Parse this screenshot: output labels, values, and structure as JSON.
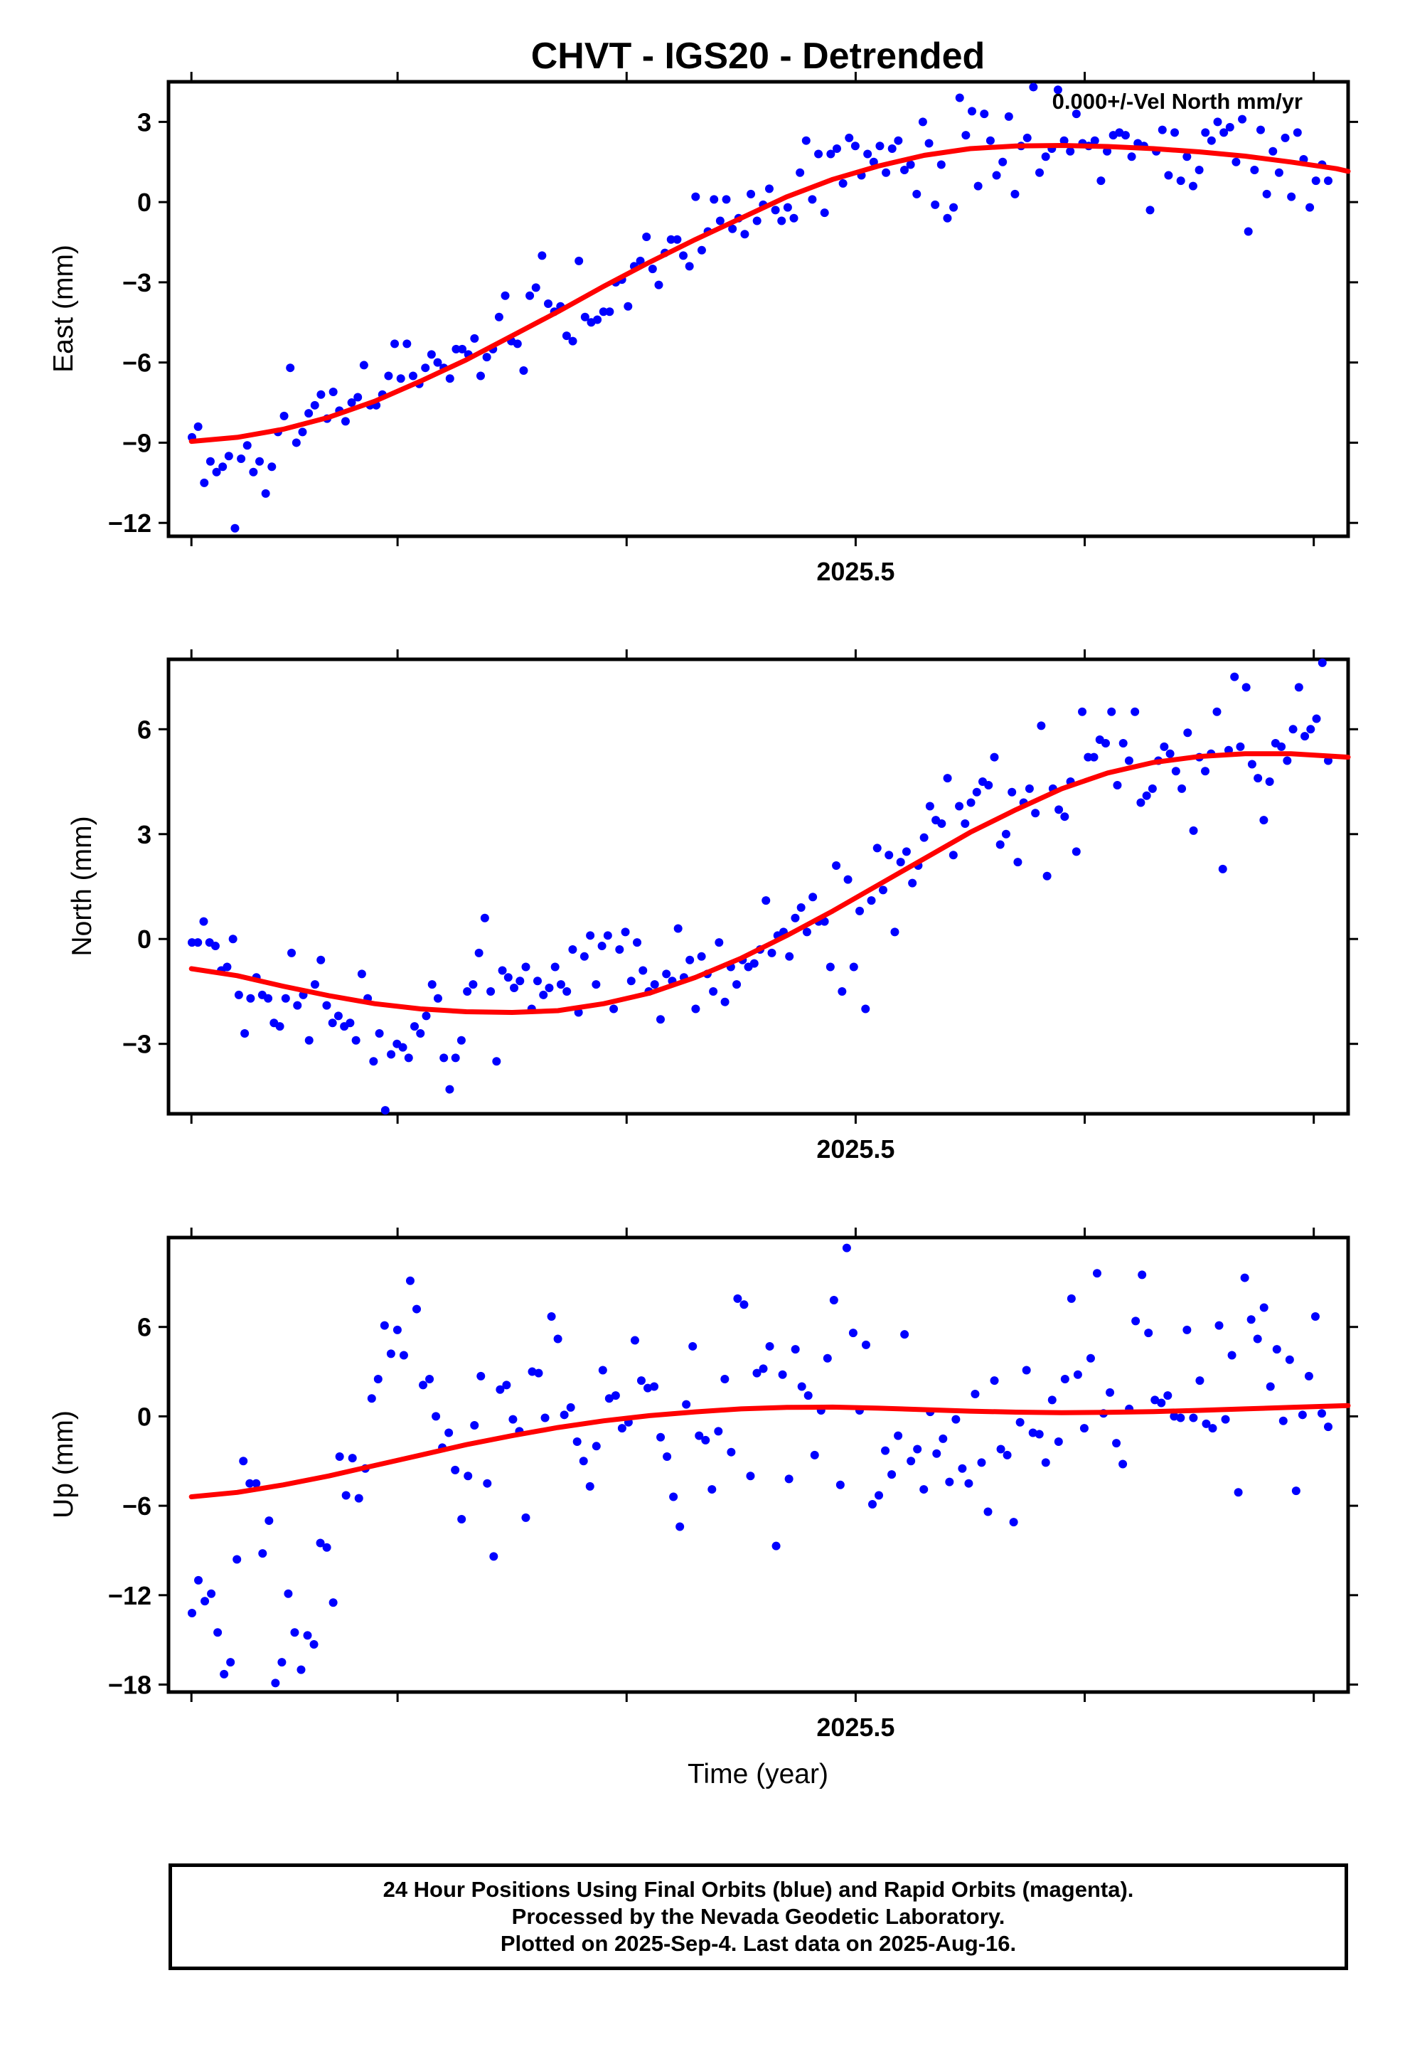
{
  "title": "CHVT - IGS20 - Detrended",
  "annotation": "0.000+/-Vel North mm/yr",
  "xlabel": "Time (year)",
  "footer": {
    "line1": "24 Hour Positions Using Final Orbits (blue) and Rapid Orbits (magenta).",
    "line2": "Processed by the Nevada Geodetic Laboratory.",
    "line3": "Plotted on 2025-Sep-4. Last data on 2025-Aug-16."
  },
  "colors": {
    "points": "#0000ff",
    "fit": "#ff0000",
    "axes": "#000000"
  },
  "chart_data": [
    {
      "type": "scatter",
      "ylabel": "East (mm)",
      "xlim": [
        2024.9,
        2025.93
      ],
      "ylim": [
        -12.5,
        4.5
      ],
      "yticks": [
        3,
        0,
        -3,
        -6,
        -9,
        -12
      ],
      "ytick_labels": [
        "3",
        "0",
        "−3",
        "−6",
        "−9",
        "−12"
      ],
      "xticks": [
        2024.92,
        2025.1,
        2025.3,
        2025.5,
        2025.7,
        2025.9
      ],
      "xtick_labels": [
        "",
        "",
        "",
        "2025.5",
        "",
        ""
      ],
      "series": [
        {
          "values": [
            -8.8,
            -8.4,
            -10.5,
            -9.7,
            -10.1,
            -9.9,
            -9.5,
            -12.2,
            -9.6,
            -9.1,
            -10.1,
            -9.7,
            -10.9,
            -9.9,
            -8.6,
            -8.0,
            -6.2,
            -9.0,
            -8.6,
            -7.9,
            -7.6,
            -7.2,
            -8.1,
            -7.1,
            -7.8,
            -8.2,
            -7.5,
            -7.3,
            -6.1,
            -7.6,
            -7.6,
            -7.2,
            -6.5,
            -5.3,
            -6.6,
            -5.3,
            -6.5,
            -6.8,
            -6.2,
            -5.7,
            -6.0,
            -6.2,
            -6.6,
            -5.5,
            -5.5,
            -5.7,
            -5.1,
            -6.5,
            -5.8,
            -5.5,
            -4.3,
            -3.5,
            -5.2,
            -5.3,
            -6.3,
            -3.5,
            -3.2,
            -2.0,
            -3.8,
            -4.1,
            -3.9,
            -5.0,
            -5.2,
            -2.2,
            -4.3,
            -4.5,
            -4.4,
            -4.1,
            -4.1,
            -3.0,
            -2.9,
            -3.9,
            -2.4,
            -2.2,
            -1.3,
            -2.5,
            -3.1,
            -1.9,
            -1.4,
            -1.4,
            -2.0,
            -2.4,
            0.2,
            -1.8,
            -1.1,
            0.1,
            -0.7,
            0.1,
            -1.0,
            -0.6,
            -1.2,
            0.3,
            -0.7,
            -0.1,
            0.5,
            -0.3,
            -0.7,
            -0.2,
            -0.6,
            1.1,
            2.3,
            0.1,
            1.8,
            -0.4,
            1.8,
            2.0,
            0.7,
            2.4,
            2.1,
            1.0,
            1.8,
            1.5,
            2.1,
            1.1,
            2.0,
            2.3,
            1.2,
            1.4,
            0.3,
            3.0,
            2.2,
            -0.1,
            1.4,
            -0.6,
            -0.2,
            3.9,
            2.5,
            3.4,
            0.6,
            3.3,
            2.3,
            1.0,
            1.5,
            3.2,
            0.3,
            2.1,
            2.4,
            4.3,
            1.1,
            1.7,
            2.0,
            4.2,
            2.3,
            1.9,
            3.3,
            2.2,
            2.1,
            2.3,
            0.8,
            1.9,
            2.5,
            2.6,
            2.5,
            1.7,
            2.2,
            2.1,
            -0.3,
            1.9,
            2.7,
            1.0,
            2.6,
            0.8,
            1.7,
            0.6,
            1.2,
            2.6,
            2.3,
            3.0,
            2.6,
            2.8,
            1.5,
            3.1,
            -1.1,
            1.2,
            2.7,
            0.3,
            1.9,
            1.1,
            2.4,
            0.2,
            2.6,
            1.6,
            -0.2,
            0.8,
            1.4,
            0.8
          ]
        }
      ],
      "fit": [
        {
          "x": 2024.92,
          "y": -8.95
        },
        {
          "x": 2024.96,
          "y": -8.8
        },
        {
          "x": 2025.0,
          "y": -8.5
        },
        {
          "x": 2025.04,
          "y": -8.05
        },
        {
          "x": 2025.08,
          "y": -7.45
        },
        {
          "x": 2025.12,
          "y": -6.7
        },
        {
          "x": 2025.16,
          "y": -5.9
        },
        {
          "x": 2025.2,
          "y": -5.0
        },
        {
          "x": 2025.24,
          "y": -4.1
        },
        {
          "x": 2025.28,
          "y": -3.15
        },
        {
          "x": 2025.32,
          "y": -2.25
        },
        {
          "x": 2025.36,
          "y": -1.4
        },
        {
          "x": 2025.4,
          "y": -0.6
        },
        {
          "x": 2025.44,
          "y": 0.2
        },
        {
          "x": 2025.48,
          "y": 0.85
        },
        {
          "x": 2025.52,
          "y": 1.35
        },
        {
          "x": 2025.56,
          "y": 1.75
        },
        {
          "x": 2025.6,
          "y": 2.0
        },
        {
          "x": 2025.64,
          "y": 2.1
        },
        {
          "x": 2025.68,
          "y": 2.12
        },
        {
          "x": 2025.72,
          "y": 2.08
        },
        {
          "x": 2025.76,
          "y": 2.0
        },
        {
          "x": 2025.8,
          "y": 1.88
        },
        {
          "x": 2025.84,
          "y": 1.72
        },
        {
          "x": 2025.88,
          "y": 1.5
        },
        {
          "x": 2025.92,
          "y": 1.25
        },
        {
          "x": 2025.93,
          "y": 1.15
        }
      ]
    },
    {
      "type": "scatter",
      "ylabel": "North (mm)",
      "xlim": [
        2024.9,
        2025.93
      ],
      "ylim": [
        -5,
        8
      ],
      "yticks": [
        6,
        3,
        0,
        -3
      ],
      "ytick_labels": [
        "6",
        "3",
        "0",
        "−3"
      ],
      "xticks": [
        2024.92,
        2025.1,
        2025.3,
        2025.5,
        2025.7,
        2025.9
      ],
      "xtick_labels": [
        "",
        "",
        "",
        "2025.5",
        "",
        ""
      ],
      "series": [
        {
          "values": [
            -0.1,
            -0.1,
            0.5,
            -0.1,
            -0.2,
            -0.9,
            -0.8,
            0.0,
            -1.6,
            -2.7,
            -1.7,
            -1.1,
            -1.6,
            -1.7,
            -2.4,
            -2.5,
            -1.7,
            -0.4,
            -1.9,
            -1.6,
            -2.9,
            -1.3,
            -0.6,
            -1.9,
            -2.4,
            -2.2,
            -2.5,
            -2.4,
            -2.9,
            -1.0,
            -1.7,
            -3.5,
            -2.7,
            -4.9,
            -3.3,
            -3.0,
            -3.1,
            -3.4,
            -2.5,
            -2.7,
            -2.2,
            -1.3,
            -1.7,
            -3.4,
            -4.3,
            -3.4,
            -2.9,
            -1.5,
            -1.3,
            -0.4,
            0.6,
            -1.5,
            -3.5,
            -0.9,
            -1.1,
            -1.4,
            -1.2,
            -0.8,
            -2.0,
            -1.2,
            -1.6,
            -1.4,
            -0.8,
            -1.3,
            -1.5,
            -0.3,
            -2.1,
            -0.5,
            0.1,
            -1.3,
            -0.2,
            0.1,
            -2.0,
            -0.3,
            0.2,
            -1.2,
            -0.1,
            -0.9,
            -1.5,
            -1.3,
            -2.3,
            -1.0,
            -1.2,
            0.3,
            -1.1,
            -0.6,
            -2.0,
            -0.5,
            -1.0,
            -1.5,
            -0.1,
            -1.8,
            -0.8,
            -1.3,
            -0.6,
            -0.8,
            -0.7,
            -0.3,
            1.1,
            -0.4,
            0.1,
            0.2,
            -0.5,
            0.6,
            0.9,
            0.2,
            1.2,
            0.5,
            0.5,
            -0.8,
            2.1,
            -1.5,
            1.7,
            -0.8,
            0.8,
            -2.0,
            1.1,
            2.6,
            1.4,
            2.4,
            0.2,
            2.2,
            2.5,
            1.6,
            2.1,
            2.9,
            3.8,
            3.4,
            3.3,
            4.6,
            2.4,
            3.8,
            3.3,
            3.9,
            4.2,
            4.5,
            4.4,
            5.2,
            2.7,
            3.0,
            4.2,
            2.2,
            3.9,
            4.3,
            3.6,
            6.1,
            1.8,
            4.3,
            3.7,
            3.5,
            4.5,
            2.5,
            6.5,
            5.2,
            5.2,
            5.7,
            5.6,
            6.5,
            4.4,
            5.6,
            5.1,
            6.5,
            3.9,
            4.1,
            4.3,
            5.1,
            5.5,
            5.3,
            4.8,
            4.3,
            5.9,
            3.1,
            5.2,
            4.8,
            5.3,
            6.5,
            2.0,
            5.4,
            7.5,
            5.5,
            7.2,
            5.0,
            4.6,
            3.4,
            4.5,
            5.6,
            5.5,
            5.1,
            6.0,
            7.2,
            5.8,
            6.0,
            6.3,
            7.9,
            5.1
          ]
        }
      ],
      "fit": [
        {
          "x": 2024.92,
          "y": -0.85
        },
        {
          "x": 2024.96,
          "y": -1.05
        },
        {
          "x": 2025.0,
          "y": -1.35
        },
        {
          "x": 2025.04,
          "y": -1.62
        },
        {
          "x": 2025.08,
          "y": -1.85
        },
        {
          "x": 2025.12,
          "y": -2.0
        },
        {
          "x": 2025.16,
          "y": -2.08
        },
        {
          "x": 2025.2,
          "y": -2.1
        },
        {
          "x": 2025.24,
          "y": -2.05
        },
        {
          "x": 2025.28,
          "y": -1.85
        },
        {
          "x": 2025.32,
          "y": -1.55
        },
        {
          "x": 2025.36,
          "y": -1.1
        },
        {
          "x": 2025.4,
          "y": -0.55
        },
        {
          "x": 2025.44,
          "y": 0.1
        },
        {
          "x": 2025.48,
          "y": 0.8
        },
        {
          "x": 2025.52,
          "y": 1.55
        },
        {
          "x": 2025.56,
          "y": 2.3
        },
        {
          "x": 2025.6,
          "y": 3.05
        },
        {
          "x": 2025.64,
          "y": 3.7
        },
        {
          "x": 2025.68,
          "y": 4.3
        },
        {
          "x": 2025.72,
          "y": 4.75
        },
        {
          "x": 2025.76,
          "y": 5.05
        },
        {
          "x": 2025.8,
          "y": 5.22
        },
        {
          "x": 2025.84,
          "y": 5.3
        },
        {
          "x": 2025.88,
          "y": 5.3
        },
        {
          "x": 2025.92,
          "y": 5.22
        },
        {
          "x": 2025.93,
          "y": 5.2
        }
      ]
    },
    {
      "type": "scatter",
      "ylabel": "Up (mm)",
      "xlim": [
        2024.9,
        2025.93
      ],
      "ylim": [
        -18.5,
        12
      ],
      "yticks": [
        6,
        0,
        -6,
        -12,
        -18
      ],
      "ytick_labels": [
        "6",
        "0",
        "−6",
        "−12",
        "−18"
      ],
      "xticks": [
        2024.92,
        2025.1,
        2025.3,
        2025.5,
        2025.7,
        2025.9
      ],
      "xtick_labels": [
        "",
        "",
        "",
        "2025.5",
        "",
        ""
      ],
      "series": [
        {
          "values": [
            -13.2,
            -11.0,
            -12.4,
            -11.9,
            -14.5,
            -17.3,
            -16.5,
            -9.6,
            -3.0,
            -4.5,
            -4.5,
            -9.2,
            -7.0,
            -17.9,
            -16.5,
            -11.9,
            -14.5,
            -17.0,
            -14.7,
            -15.3,
            -8.5,
            -8.8,
            -12.5,
            -2.7,
            -5.3,
            -2.8,
            -5.5,
            -3.5,
            1.2,
            2.5,
            6.1,
            4.2,
            5.8,
            4.1,
            9.1,
            7.2,
            2.1,
            2.5,
            0.0,
            -2.1,
            -1.1,
            -3.6,
            -6.9,
            -4.0,
            -0.6,
            2.7,
            -4.5,
            -9.4,
            1.8,
            2.1,
            -0.2,
            -1.0,
            -6.8,
            3.0,
            2.9,
            -0.1,
            6.7,
            5.2,
            0.1,
            0.6,
            -1.7,
            -3.0,
            -4.7,
            -2.0,
            3.1,
            1.2,
            1.4,
            -0.8,
            -0.4,
            5.1,
            2.4,
            1.9,
            2.0,
            -1.4,
            -2.7,
            -5.4,
            -7.4,
            0.8,
            4.7,
            -1.3,
            -1.6,
            -4.9,
            -1.0,
            2.5,
            -2.4,
            7.9,
            7.5,
            -4.0,
            2.9,
            3.2,
            4.7,
            -8.7,
            2.8,
            -4.2,
            4.5,
            2.0,
            1.4,
            -2.6,
            0.4,
            3.9,
            7.8,
            -4.6,
            11.3,
            5.6,
            0.4,
            4.8,
            -5.9,
            -5.3,
            -2.3,
            -3.9,
            -1.3,
            5.5,
            -3.0,
            -2.2,
            -4.9,
            0.3,
            -2.5,
            -1.5,
            -4.4,
            -0.2,
            -3.5,
            -4.5,
            1.5,
            -3.1,
            -6.4,
            2.4,
            -2.2,
            -2.6,
            -7.1,
            -0.4,
            3.1,
            -1.1,
            -1.2,
            -3.1,
            1.1,
            -1.7,
            2.5,
            7.9,
            2.8,
            -0.8,
            3.9,
            9.6,
            0.2,
            1.6,
            -1.8,
            -3.2,
            0.5,
            6.4,
            9.5,
            5.6,
            1.1,
            0.9,
            1.4,
            0.0,
            -0.1,
            5.8,
            -0.1,
            2.4,
            -0.5,
            -0.8,
            6.1,
            -0.2,
            4.1,
            -5.1,
            9.3,
            6.5,
            5.2,
            7.3,
            2.0,
            4.5,
            -0.3,
            3.8,
            -5.0,
            0.1,
            2.7,
            6.7,
            0.2,
            -0.7
          ]
        }
      ],
      "fit": [
        {
          "x": 2024.92,
          "y": -5.4
        },
        {
          "x": 2024.96,
          "y": -5.1
        },
        {
          "x": 2025.0,
          "y": -4.6
        },
        {
          "x": 2025.04,
          "y": -4.0
        },
        {
          "x": 2025.08,
          "y": -3.3
        },
        {
          "x": 2025.12,
          "y": -2.6
        },
        {
          "x": 2025.16,
          "y": -1.9
        },
        {
          "x": 2025.2,
          "y": -1.3
        },
        {
          "x": 2025.24,
          "y": -0.75
        },
        {
          "x": 2025.28,
          "y": -0.3
        },
        {
          "x": 2025.32,
          "y": 0.05
        },
        {
          "x": 2025.36,
          "y": 0.3
        },
        {
          "x": 2025.4,
          "y": 0.5
        },
        {
          "x": 2025.44,
          "y": 0.6
        },
        {
          "x": 2025.48,
          "y": 0.62
        },
        {
          "x": 2025.52,
          "y": 0.55
        },
        {
          "x": 2025.56,
          "y": 0.45
        },
        {
          "x": 2025.6,
          "y": 0.35
        },
        {
          "x": 2025.64,
          "y": 0.28
        },
        {
          "x": 2025.68,
          "y": 0.25
        },
        {
          "x": 2025.72,
          "y": 0.27
        },
        {
          "x": 2025.76,
          "y": 0.32
        },
        {
          "x": 2025.8,
          "y": 0.4
        },
        {
          "x": 2025.84,
          "y": 0.5
        },
        {
          "x": 2025.88,
          "y": 0.6
        },
        {
          "x": 2025.92,
          "y": 0.7
        },
        {
          "x": 2025.93,
          "y": 0.72
        }
      ]
    }
  ]
}
